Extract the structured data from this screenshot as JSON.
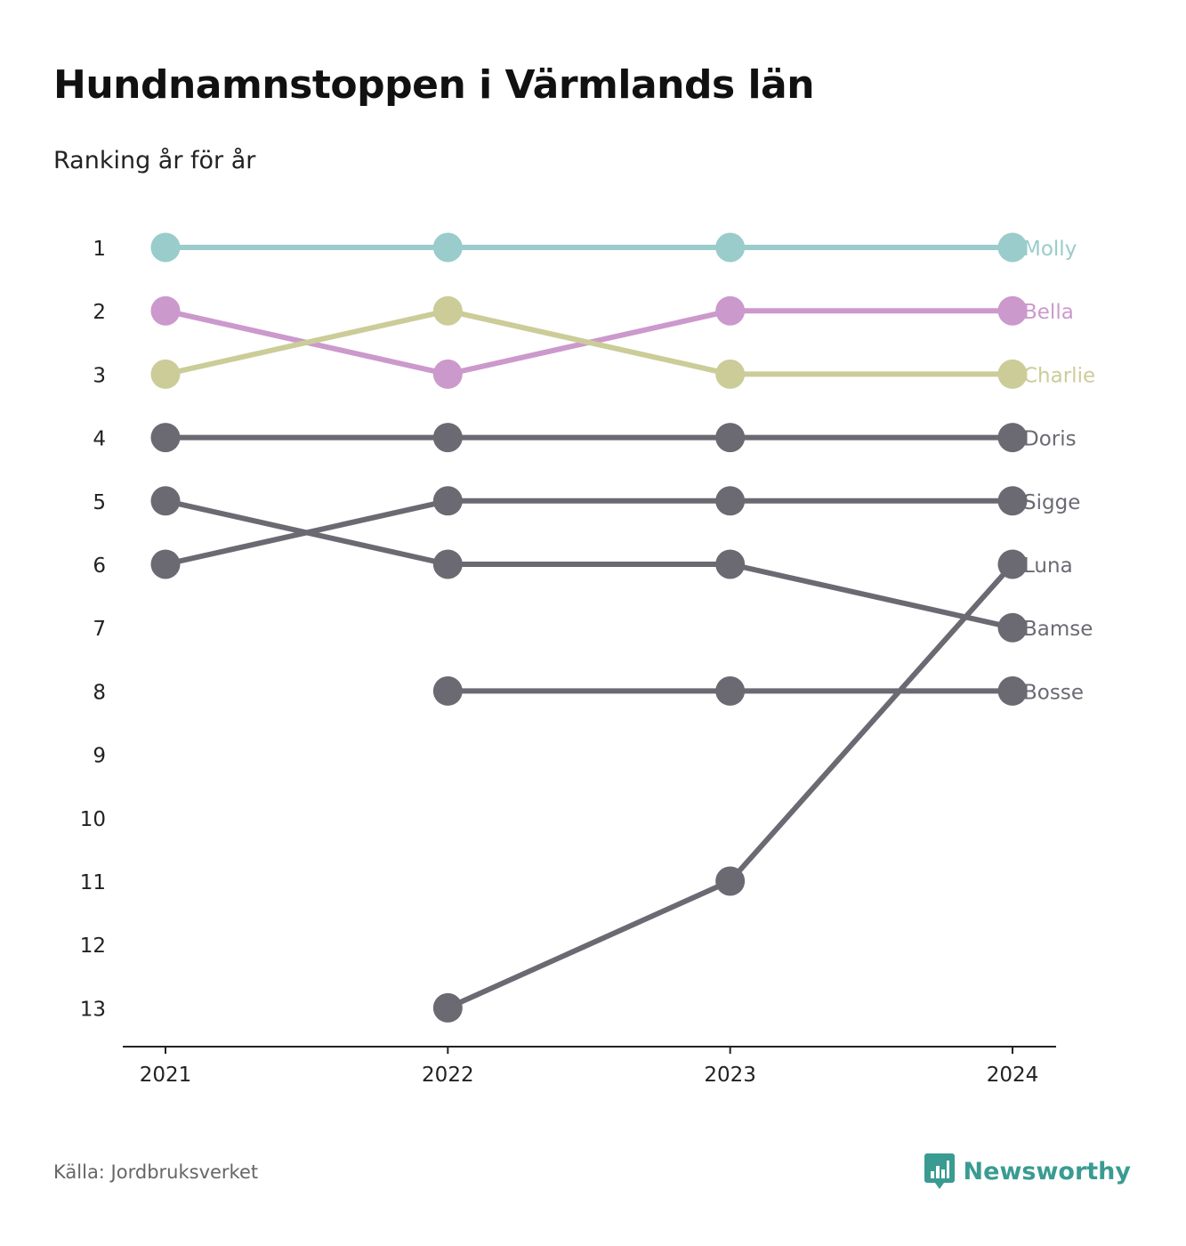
{
  "header": {
    "title": "Hundnamnstoppen i Värmlands län",
    "subtitle": "Ranking år för år"
  },
  "footer": {
    "source": "Källa: Jordbruksverket",
    "brand": "Newsworthy",
    "brand_color": "#3a9b92"
  },
  "colors": {
    "Molly": "#99cccb",
    "Bella": "#cc99cc",
    "Charlie": "#cccc99",
    "default": "#6b6a73",
    "axis": "#222222",
    "tick_text": "#222222"
  },
  "chart_data": {
    "type": "line",
    "x": [
      "2021",
      "2022",
      "2023",
      "2024"
    ],
    "ylim": [
      1,
      13
    ],
    "y_reversed": true,
    "y_ticks": [
      1,
      2,
      3,
      4,
      5,
      6,
      7,
      8,
      9,
      10,
      11,
      12,
      13
    ],
    "grid": false,
    "legend": "end-labels",
    "series": [
      {
        "name": "Molly",
        "values": [
          1,
          1,
          1,
          1
        ]
      },
      {
        "name": "Bella",
        "values": [
          2,
          3,
          2,
          2
        ]
      },
      {
        "name": "Charlie",
        "values": [
          3,
          2,
          3,
          3
        ]
      },
      {
        "name": "Doris",
        "values": [
          4,
          4,
          4,
          4
        ]
      },
      {
        "name": "Sigge",
        "values": [
          6,
          5,
          5,
          5
        ]
      },
      {
        "name": "Luna",
        "values": [
          null,
          13,
          11,
          6
        ]
      },
      {
        "name": "Bamse",
        "values": [
          5,
          6,
          6,
          7
        ]
      },
      {
        "name": "Bosse",
        "values": [
          null,
          8,
          8,
          8
        ]
      }
    ]
  }
}
